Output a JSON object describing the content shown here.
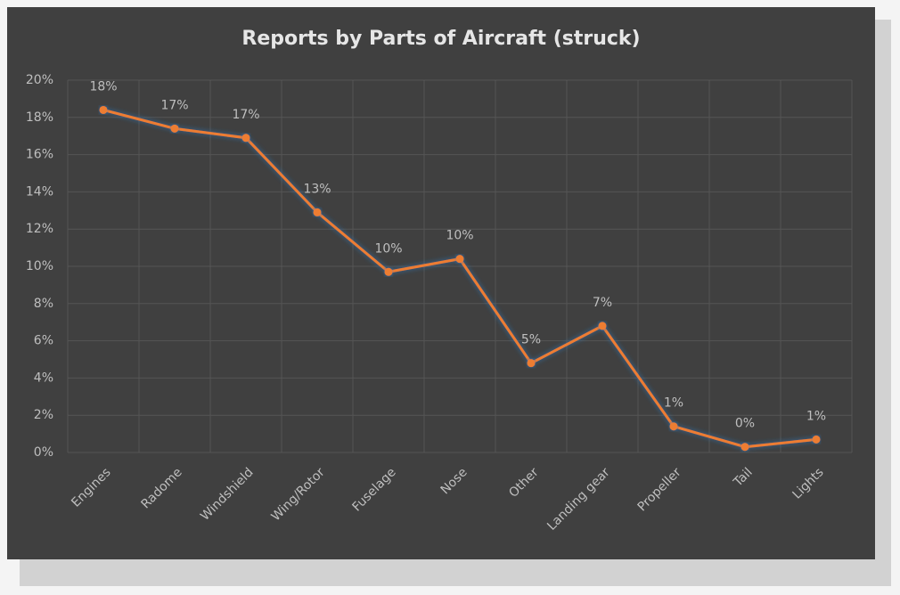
{
  "chart_data": {
    "type": "line",
    "title": "Reports by Parts of Aircraft (struck)",
    "categories": [
      "Engines",
      "Radome",
      "Windshield",
      "Wing/Rotor",
      "Fuselage",
      "Nose",
      "Other",
      "Landing gear",
      "Propeller",
      "Tail",
      "Lights"
    ],
    "values": [
      18.4,
      17.4,
      16.9,
      12.9,
      9.7,
      10.4,
      4.8,
      6.8,
      1.4,
      0.3,
      0.7
    ],
    "value_labels": [
      "18%",
      "17%",
      "17%",
      "13%",
      "10%",
      "10%",
      "5%",
      "7%",
      "1%",
      "0%",
      "1%"
    ],
    "color": "#ed7d31",
    "ylim": [
      0,
      20
    ],
    "yticks": [
      {
        "value": 0,
        "label": "0%"
      },
      {
        "value": 2,
        "label": "2%"
      },
      {
        "value": 4,
        "label": "4%"
      },
      {
        "value": 6,
        "label": "6%"
      },
      {
        "value": 8,
        "label": "8%"
      },
      {
        "value": 10,
        "label": "10%"
      },
      {
        "value": 12,
        "label": "12%"
      },
      {
        "value": 14,
        "label": "14%"
      },
      {
        "value": 16,
        "label": "16%"
      },
      {
        "value": 18,
        "label": "18%"
      },
      {
        "value": 20,
        "label": "20%"
      }
    ],
    "grid": true
  }
}
